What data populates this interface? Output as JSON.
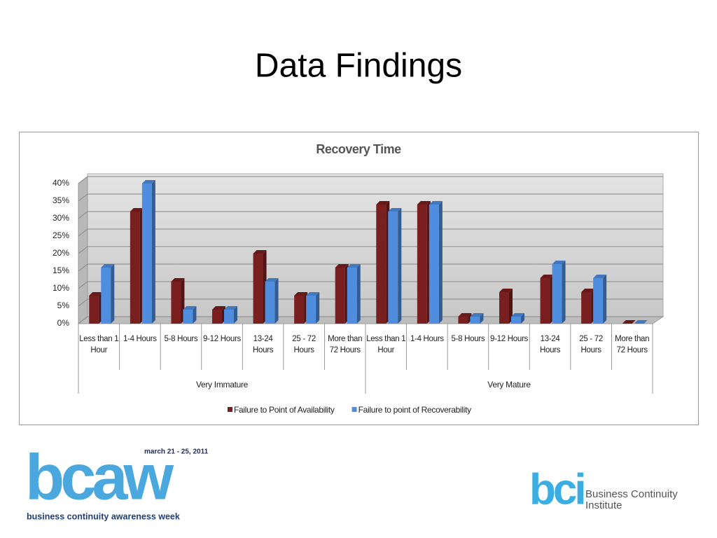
{
  "slide_title": "Data Findings",
  "chart_data": {
    "type": "bar3d",
    "title": "Recovery Time",
    "category_groups": [
      {
        "name": "Very Immature",
        "categories": [
          "Less than 1 Hour",
          "1-4 Hours",
          "5-8 Hours",
          "9-12 Hours",
          "13-24 Hours",
          "25 - 72 Hours",
          "More than 72 Hours"
        ]
      },
      {
        "name": "Very Mature",
        "categories": [
          "Less than 1 Hour",
          "1-4 Hours",
          "5-8 Hours",
          "9-12 Hours",
          "13-24 Hours",
          "25 - 72 Hours",
          "More than 72 Hours"
        ]
      }
    ],
    "series": [
      {
        "name": "Failure to Point of Availability",
        "color": "#7a1f1f",
        "values": [
          8,
          32,
          12,
          4,
          20,
          8,
          16,
          34,
          34,
          2,
          9,
          13,
          9,
          0
        ]
      },
      {
        "name": "Failure to point of Recoverability",
        "color": "#4f8ddf",
        "values": [
          16,
          40,
          4,
          4,
          12,
          8,
          16,
          32,
          34,
          2,
          2,
          17,
          13,
          0
        ]
      }
    ],
    "ylim": [
      0,
      40
    ],
    "yticks": [
      {
        "value": 0,
        "label": "0%"
      },
      {
        "value": 5,
        "label": "5%"
      },
      {
        "value": 10,
        "label": "10%"
      },
      {
        "value": 15,
        "label": "15%"
      },
      {
        "value": 20,
        "label": "20%"
      },
      {
        "value": 25,
        "label": "25%"
      },
      {
        "value": 30,
        "label": "30%"
      },
      {
        "value": 35,
        "label": "35%"
      },
      {
        "value": 40,
        "label": "40%"
      }
    ],
    "grid": true,
    "legend": "bottom"
  },
  "logos": {
    "bcaw": {
      "mark": "bcaw",
      "date": "march 21 - 25, 2011",
      "tagline": "business continuity awareness week"
    },
    "bci": {
      "mark": "bci",
      "line1": "Business Continuity",
      "line2": "Institute"
    }
  }
}
